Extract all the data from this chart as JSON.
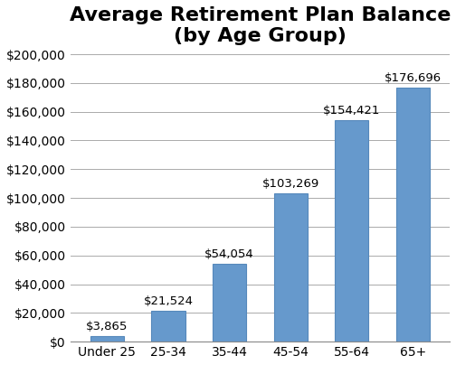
{
  "title": "Average Retirement Plan Balance\n(by Age Group)",
  "categories": [
    "Under 25",
    "25-34",
    "35-44",
    "45-54",
    "55-64",
    "65+"
  ],
  "values": [
    3865,
    21524,
    54054,
    103269,
    154421,
    176696
  ],
  "labels": [
    "$3,865",
    "$21,524",
    "$54,054",
    "$103,269",
    "$154,421",
    "$176,696"
  ],
  "bar_color": "#6699CC",
  "bar_edge_color": "#5588BB",
  "ylim": [
    0,
    200000
  ],
  "yticks": [
    0,
    20000,
    40000,
    60000,
    80000,
    100000,
    120000,
    140000,
    160000,
    180000,
    200000
  ],
  "ytick_labels": [
    "$0",
    "$20,000",
    "$40,000",
    "$60,000",
    "$80,000",
    "$100,000",
    "$120,000",
    "$140,000",
    "$160,000",
    "$180,000",
    "$200,000"
  ],
  "title_fontsize": 16,
  "tick_fontsize": 10,
  "label_fontsize": 9.5,
  "background_color": "#FFFFFF",
  "grid_color": "#AAAAAA",
  "bar_width": 0.55
}
